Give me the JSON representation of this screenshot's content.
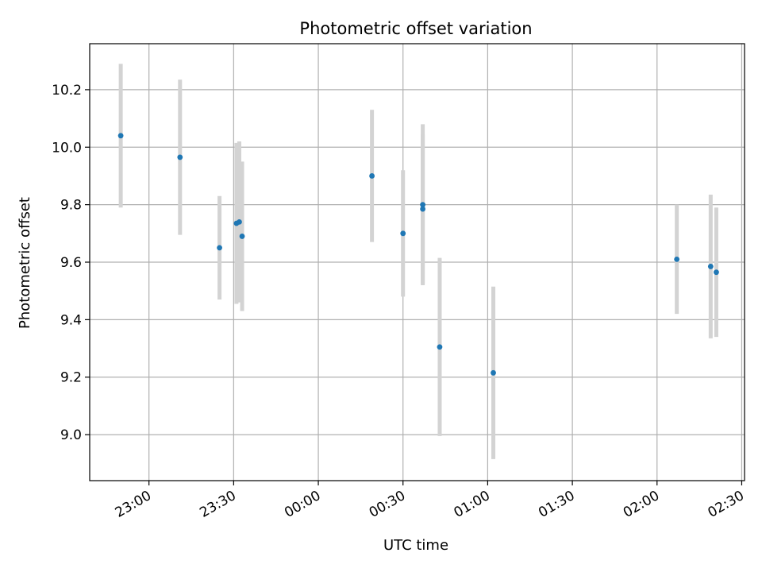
{
  "chart_data": {
    "type": "scatter",
    "title": "Photometric offset variation",
    "xlabel": "UTC time",
    "ylabel": "Photometric offset",
    "x_ticks": [
      "23:00",
      "23:30",
      "00:00",
      "00:30",
      "01:00",
      "01:30",
      "02:00",
      "02:30"
    ],
    "y_ticks": [
      "9.0",
      "9.2",
      "9.4",
      "9.6",
      "9.8",
      "10.0",
      "10.2"
    ],
    "xlim": [
      "22:39",
      "02:31"
    ],
    "ylim": [
      8.84,
      10.36
    ],
    "grid": true,
    "series": [
      {
        "marker": "point",
        "error_bars": "vertical",
        "points": [
          {
            "x": "22:50",
            "y": 10.04,
            "err": 0.25
          },
          {
            "x": "23:11",
            "y": 9.965,
            "err": 0.27
          },
          {
            "x": "23:25",
            "y": 9.65,
            "err": 0.18
          },
          {
            "x": "23:31",
            "y": 9.735,
            "err": 0.28
          },
          {
            "x": "23:32",
            "y": 9.74,
            "err": 0.28
          },
          {
            "x": "23:33",
            "y": 9.69,
            "err": 0.26
          },
          {
            "x": "00:19",
            "y": 9.9,
            "err": 0.23
          },
          {
            "x": "00:30",
            "y": 9.7,
            "err": 0.22
          },
          {
            "x": "00:37",
            "y": 9.8,
            "err": 0.28
          },
          {
            "x": "00:37",
            "y": 9.785,
            "err": 0.26
          },
          {
            "x": "00:43",
            "y": 9.305,
            "err": 0.31
          },
          {
            "x": "01:02",
            "y": 9.215,
            "err": 0.3
          },
          {
            "x": "02:07",
            "y": 9.61,
            "err": 0.19
          },
          {
            "x": "02:19",
            "y": 9.585,
            "err": 0.25
          },
          {
            "x": "02:21",
            "y": 9.565,
            "err": 0.225
          }
        ]
      }
    ],
    "colors": {
      "marker": "#1f77b4",
      "error_bar": "#d3d3d3",
      "grid": "#b0b0b0",
      "axes": "#000000"
    }
  }
}
